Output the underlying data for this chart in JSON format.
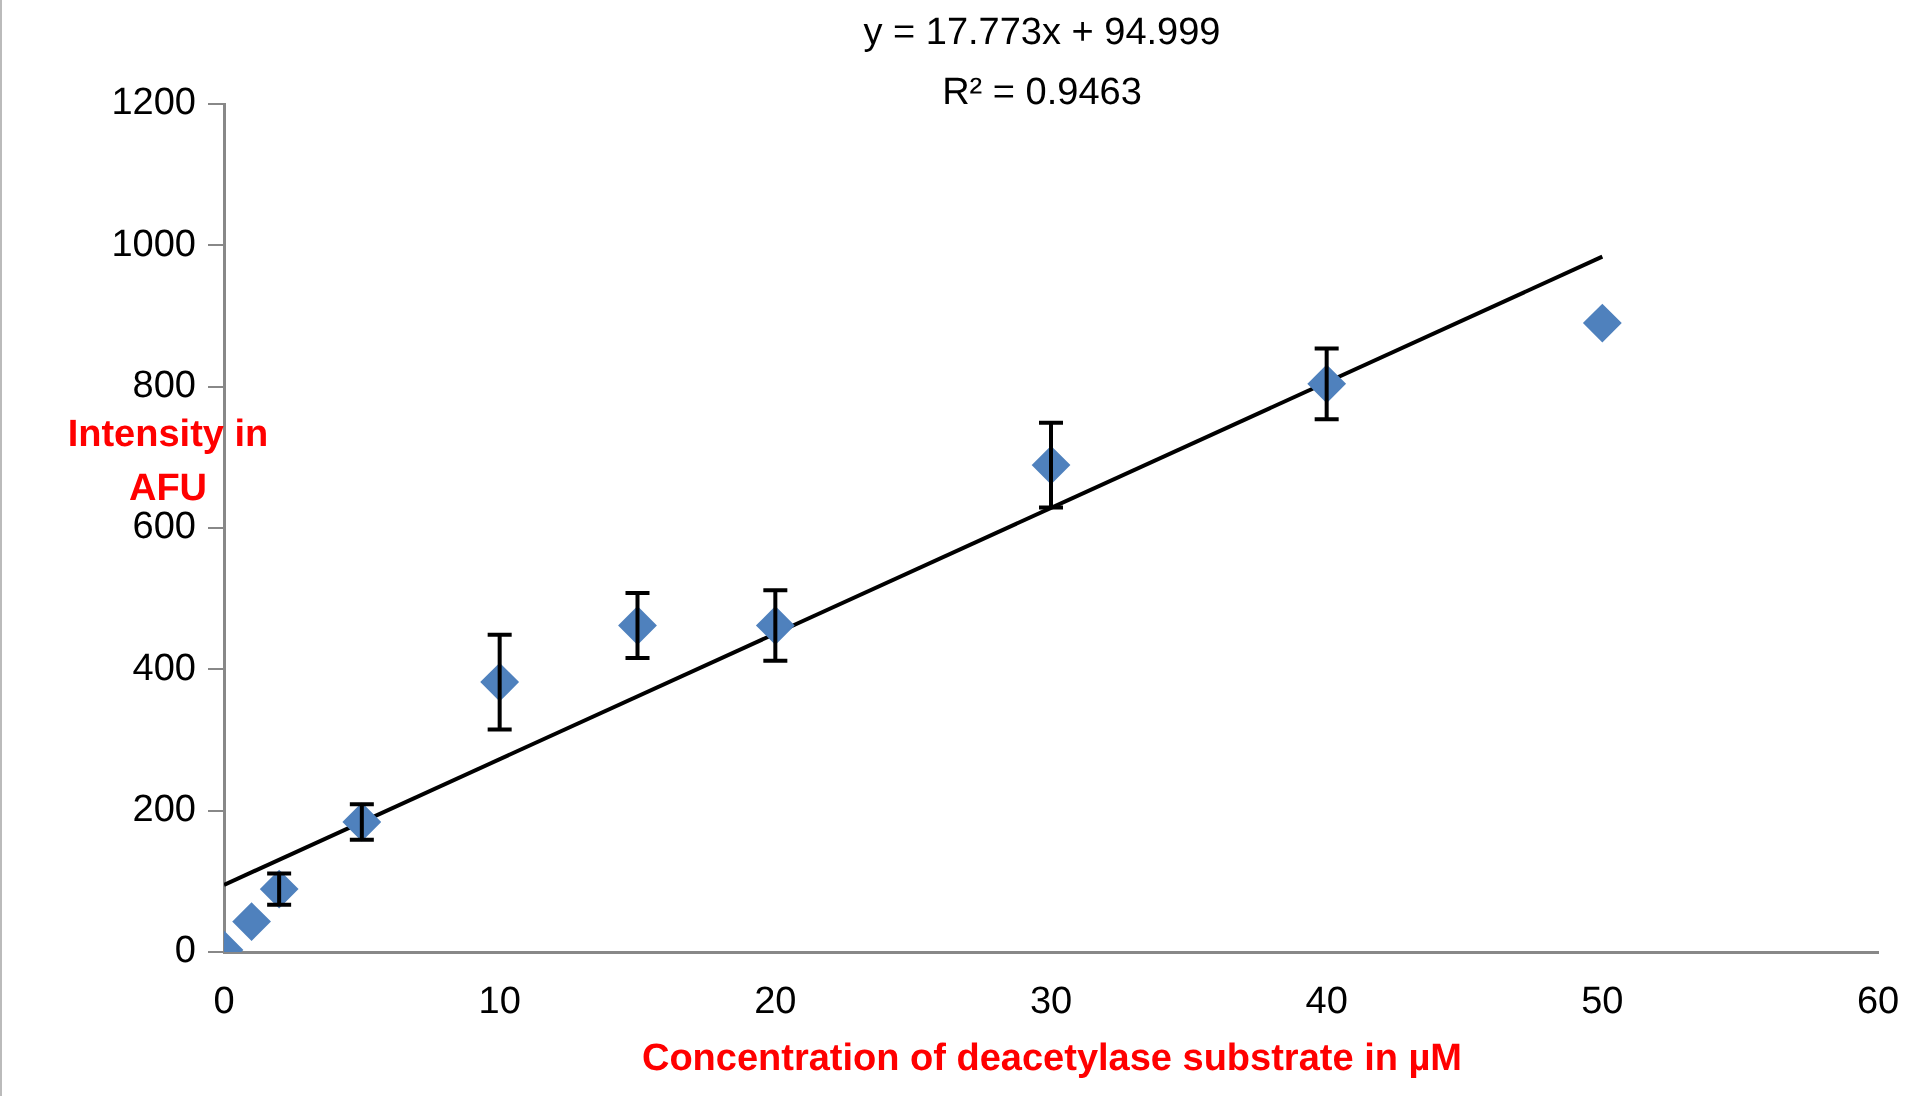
{
  "chart_data": {
    "type": "scatter",
    "xlabel": "Concentration of deacetylase substrate in µM",
    "ylabel": "Intensity in AFU",
    "annotations": [
      "y = 17.773x + 94.999",
      "R² = 0.9463"
    ],
    "series": [
      {
        "marker": "diamond",
        "color": "#4f81bd",
        "x": [
          0,
          1,
          2,
          5,
          10,
          15,
          20,
          30,
          40,
          50
        ],
        "values": [
          3,
          43,
          89,
          184,
          382,
          462,
          462,
          689,
          804,
          890
        ],
        "errors": [
          null,
          null,
          22,
          25,
          67,
          46,
          50,
          60,
          50,
          null
        ]
      },
      {
        "type": "line",
        "marker": "none",
        "color": "#000000",
        "x": [
          0,
          50
        ],
        "values": [
          95,
          984
        ]
      }
    ],
    "xlim": [
      0,
      60
    ],
    "xticks": [
      0,
      10,
      20,
      30,
      40,
      50,
      60
    ],
    "ylim": [
      0,
      1200
    ],
    "yticks": [
      0,
      200,
      400,
      600,
      800,
      1000,
      1200
    ],
    "grid": false,
    "legend": false
  }
}
